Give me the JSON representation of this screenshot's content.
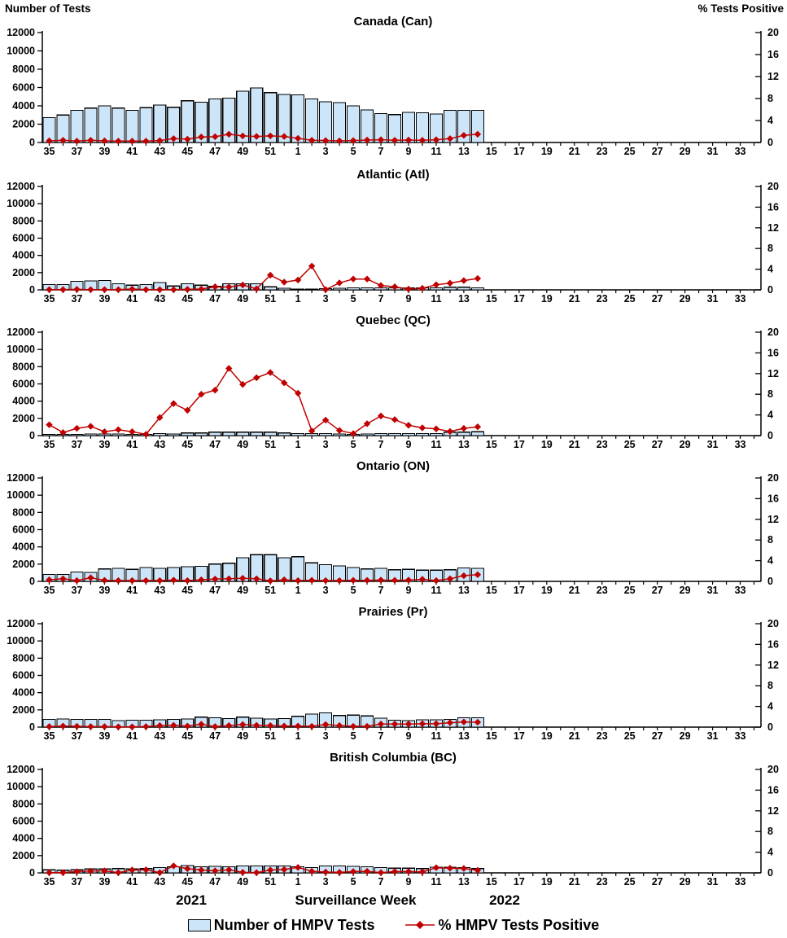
{
  "header": {
    "left_axis_title": "Number of Tests",
    "right_axis_title": "% Tests Positive"
  },
  "footer": {
    "year_left": "2021",
    "xlabel": "Surveillance Week",
    "year_right": "2022"
  },
  "legend": {
    "bars_label": "Number of HMPV Tests",
    "line_label": "% HMPV Tests Positive"
  },
  "colors": {
    "bar_fill": "#CDE5F8",
    "bar_border": "#000000",
    "line": "#C00000",
    "marker": "#C00000",
    "axis": "#000000"
  },
  "chart_data": {
    "type": "bar+line",
    "x_axis_label": "Surveillance Week",
    "x_weeks": [
      35,
      36,
      37,
      38,
      39,
      40,
      41,
      42,
      43,
      44,
      45,
      46,
      47,
      48,
      49,
      50,
      51,
      52,
      1,
      2,
      3,
      4,
      5,
      6,
      7,
      8,
      9,
      10,
      11,
      12,
      13,
      14
    ],
    "x_axis_tick_labels": [
      "35",
      "37",
      "39",
      "41",
      "43",
      "45",
      "47",
      "49",
      "51",
      "1",
      "3",
      "5",
      "7",
      "9",
      "11",
      "13",
      "15",
      "17",
      "19",
      "21",
      "23",
      "25",
      "27",
      "29",
      "31",
      "33"
    ],
    "left_axis": {
      "title": "Number of Tests",
      "ticks": [
        0,
        2000,
        4000,
        6000,
        8000,
        10000,
        12000
      ],
      "lim": [
        0,
        12000
      ]
    },
    "right_axis": {
      "title": "% Tests Positive",
      "ticks": [
        0,
        4,
        8,
        12,
        16,
        20
      ],
      "lim": [
        0,
        20
      ]
    },
    "panels": [
      {
        "title": "Canada (Can)",
        "tests": [
          2700,
          3000,
          3500,
          3750,
          4000,
          3750,
          3500,
          3800,
          4100,
          3850,
          4550,
          4400,
          4750,
          4850,
          5600,
          5950,
          5450,
          5250,
          5200,
          4750,
          4450,
          4350,
          4000,
          3550,
          3150,
          3050,
          3300,
          3250,
          3100,
          3500,
          3500,
          3500
        ],
        "pct_positive": [
          0.3,
          0.4,
          0.25,
          0.4,
          0.3,
          0.25,
          0.25,
          0.25,
          0.35,
          0.7,
          0.6,
          1.0,
          1.05,
          1.5,
          1.2,
          1.1,
          1.2,
          1.1,
          0.75,
          0.4,
          0.35,
          0.3,
          0.35,
          0.45,
          0.5,
          0.4,
          0.45,
          0.4,
          0.5,
          0.7,
          1.3,
          1.5
        ]
      },
      {
        "title": "Atlantic (Atl)",
        "tests": [
          600,
          600,
          1000,
          1050,
          1100,
          700,
          550,
          600,
          850,
          450,
          700,
          550,
          400,
          700,
          700,
          700,
          350,
          200,
          100,
          100,
          150,
          200,
          250,
          250,
          250,
          250,
          250,
          250,
          250,
          300,
          300,
          250
        ],
        "pct_positive": [
          0.05,
          0.05,
          0.1,
          0.05,
          0.05,
          0.05,
          0.15,
          0.05,
          0.05,
          0.05,
          0.1,
          0.15,
          0.6,
          0.55,
          0.95,
          0.2,
          2.85,
          1.5,
          1.9,
          4.6,
          0.05,
          1.35,
          2.1,
          2.1,
          0.85,
          0.6,
          0.15,
          0.3,
          1.0,
          1.3,
          1.8,
          2.2
        ]
      },
      {
        "title": "Quebec (QC)",
        "tests": [
          150,
          150,
          150,
          200,
          200,
          200,
          150,
          150,
          250,
          200,
          300,
          300,
          400,
          400,
          400,
          400,
          400,
          300,
          250,
          250,
          250,
          200,
          150,
          200,
          250,
          250,
          250,
          250,
          250,
          400,
          400,
          450
        ],
        "pct_positive": [
          2.1,
          0.6,
          1.4,
          1.8,
          0.75,
          1.15,
          0.75,
          0.25,
          3.5,
          6.2,
          4.9,
          8.0,
          8.8,
          13.0,
          9.9,
          11.2,
          12.2,
          10.2,
          8.2,
          0.9,
          3.0,
          1.0,
          0.4,
          2.3,
          3.8,
          3.1,
          2.0,
          1.5,
          1.3,
          0.8,
          1.4,
          1.7
        ]
      },
      {
        "title": "Ontario (ON)",
        "tests": [
          800,
          800,
          1100,
          1050,
          1450,
          1500,
          1400,
          1600,
          1500,
          1600,
          1700,
          1750,
          2000,
          2100,
          2750,
          3100,
          3100,
          2750,
          2850,
          2150,
          1950,
          1800,
          1600,
          1450,
          1500,
          1350,
          1400,
          1300,
          1300,
          1350,
          1550,
          1500
        ],
        "pct_positive": [
          0.3,
          0.5,
          0.15,
          0.7,
          0.2,
          0.15,
          0.15,
          0.15,
          0.15,
          0.25,
          0.15,
          0.3,
          0.45,
          0.5,
          0.6,
          0.5,
          0.1,
          0.3,
          0.15,
          0.2,
          0.15,
          0.15,
          0.2,
          0.2,
          0.25,
          0.2,
          0.25,
          0.4,
          0.15,
          0.5,
          1.1,
          1.3
        ]
      },
      {
        "title": "Prairies (Pr)",
        "tests": [
          900,
          950,
          900,
          900,
          900,
          750,
          800,
          800,
          850,
          900,
          950,
          1150,
          1100,
          1000,
          1150,
          1050,
          950,
          1000,
          1250,
          1500,
          1650,
          1350,
          1400,
          1300,
          1050,
          800,
          750,
          850,
          850,
          900,
          1100,
          1100
        ],
        "pct_positive": [
          0.1,
          0.2,
          0.15,
          0.1,
          0.1,
          0.05,
          0.05,
          0.1,
          0.3,
          0.35,
          0.2,
          0.55,
          0.1,
          0.3,
          0.5,
          0.35,
          0.3,
          0.2,
          0.2,
          0.15,
          0.5,
          0.3,
          0.15,
          0.15,
          0.6,
          0.6,
          0.6,
          0.65,
          0.65,
          0.85,
          1.0,
          0.95
        ]
      },
      {
        "title": "British Columbia (BC)",
        "tests": [
          350,
          300,
          350,
          450,
          450,
          500,
          450,
          500,
          600,
          700,
          850,
          700,
          750,
          700,
          800,
          800,
          800,
          800,
          700,
          600,
          800,
          800,
          750,
          700,
          600,
          550,
          550,
          500,
          650,
          650,
          600,
          500
        ],
        "pct_positive": [
          0.05,
          0.05,
          0.25,
          0.35,
          0.4,
          0.05,
          0.55,
          0.6,
          0.05,
          1.35,
          0.8,
          0.55,
          0.4,
          0.6,
          0.1,
          0.05,
          0.55,
          0.65,
          1.05,
          0.3,
          0.15,
          0.1,
          0.25,
          0.3,
          0.05,
          0.25,
          0.25,
          0.2,
          1.0,
          0.9,
          0.85,
          0.5
        ]
      }
    ]
  }
}
